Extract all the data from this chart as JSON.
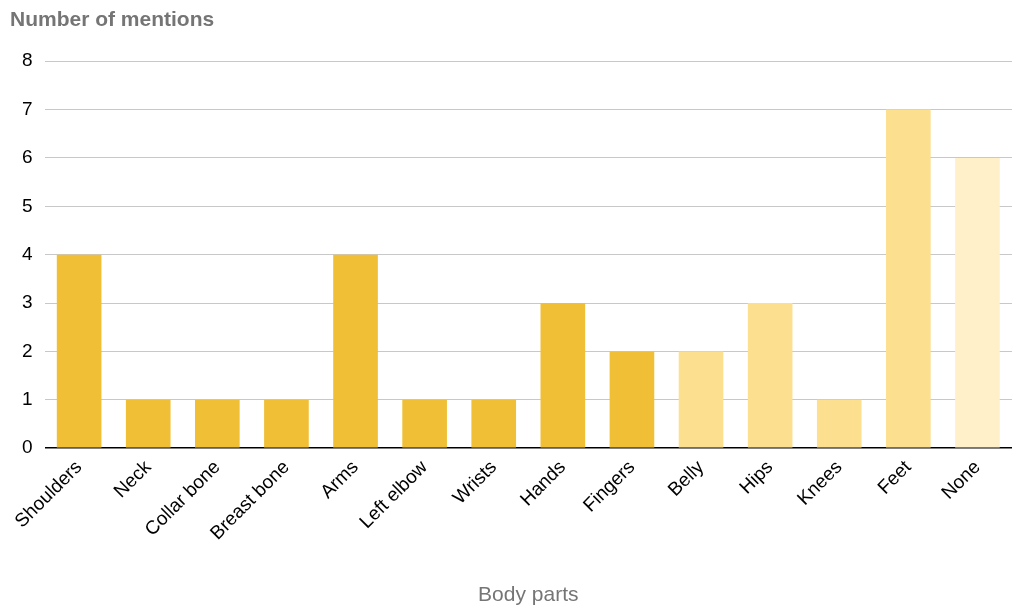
{
  "chart_data": {
    "type": "bar",
    "ylabel": "Number of mentions",
    "xlabel": "Body parts",
    "categories": [
      "Shoulders",
      "Neck",
      "Collar bone",
      "Breast bone",
      "Arms",
      "Left elbow",
      "Wrists",
      "Hands",
      "Fingers",
      "Belly",
      "Hips",
      "Knees",
      "Feet",
      "None"
    ],
    "values": [
      4,
      1,
      1,
      1,
      4,
      1,
      1,
      3,
      2,
      2,
      3,
      1,
      7,
      6
    ],
    "colors": [
      "#f0bf35",
      "#f0bf35",
      "#f0bf35",
      "#f0bf35",
      "#f0bf35",
      "#f0bf35",
      "#f0bf35",
      "#f0bf35",
      "#f0bf35",
      "#fde08f",
      "#fde08f",
      "#fde08f",
      "#fde08f",
      "#fff0c9"
    ],
    "ylim": [
      0,
      8
    ],
    "yticks": [
      0,
      1,
      2,
      3,
      4,
      5,
      6,
      7,
      8
    ],
    "grid": "y",
    "legend": false
  }
}
